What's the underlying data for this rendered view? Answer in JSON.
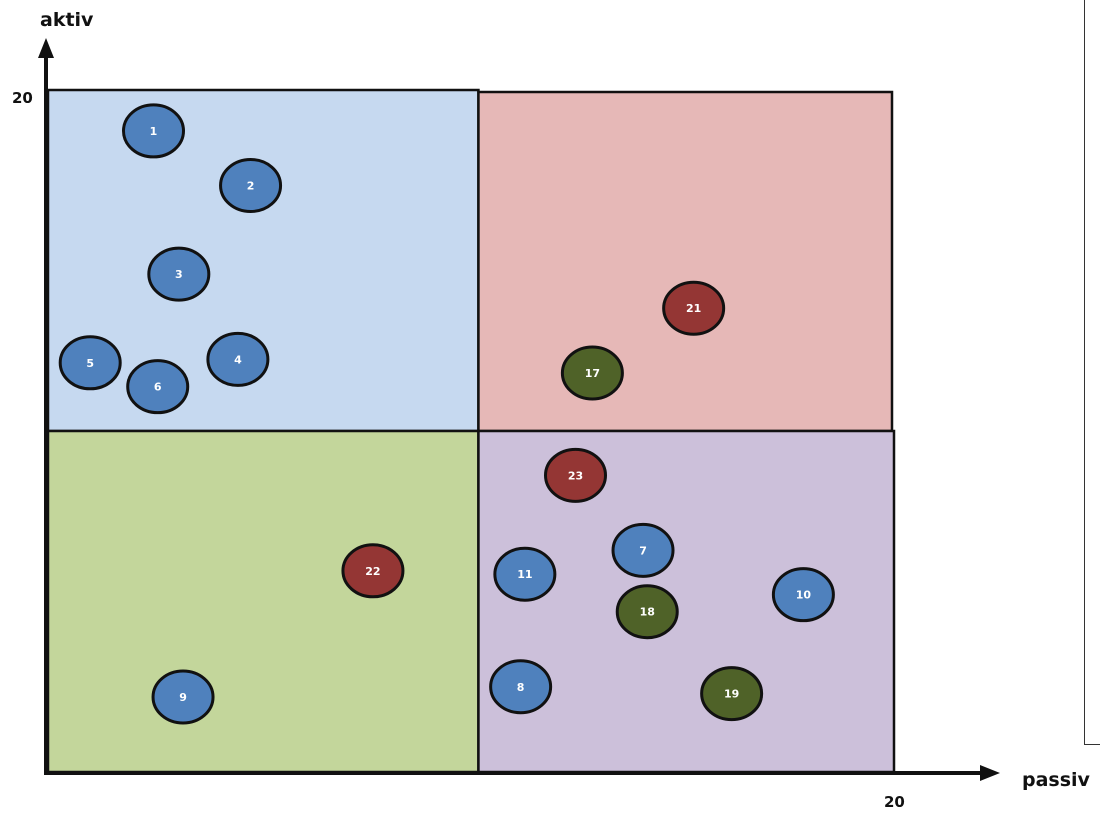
{
  "colors": {
    "quadrant_top_left": "#c6d9f0",
    "quadrant_top_right": "#e6b8b7",
    "quadrant_bottom_left": "#c3d69b",
    "quadrant_bottom_right": "#ccc0da",
    "node_blue": "#4f81bd",
    "node_red": "#943634",
    "node_green": "#4f6228",
    "outline": "#111111"
  },
  "chart_data": {
    "type": "scatter",
    "xlabel": "passiv",
    "ylabel": "aktiv",
    "x_tick_label": "20",
    "y_tick_label": "20",
    "xlim": [
      0,
      20
    ],
    "ylim": [
      0,
      20
    ],
    "quadrant_split": {
      "x": 10.2,
      "y": 10.0
    },
    "points": [
      {
        "label": "1",
        "x": 2.5,
        "y": 18.8,
        "color": "blue"
      },
      {
        "label": "2",
        "x": 4.8,
        "y": 17.2,
        "color": "blue"
      },
      {
        "label": "3",
        "x": 3.1,
        "y": 14.6,
        "color": "blue"
      },
      {
        "label": "4",
        "x": 4.5,
        "y": 12.1,
        "color": "blue"
      },
      {
        "label": "5",
        "x": 1.0,
        "y": 12.0,
        "color": "blue"
      },
      {
        "label": "6",
        "x": 2.6,
        "y": 11.3,
        "color": "blue"
      },
      {
        "label": "7",
        "x": 14.1,
        "y": 6.5,
        "color": "blue"
      },
      {
        "label": "8",
        "x": 11.2,
        "y": 2.5,
        "color": "blue"
      },
      {
        "label": "9",
        "x": 3.2,
        "y": 2.2,
        "color": "blue"
      },
      {
        "label": "10",
        "x": 17.9,
        "y": 5.2,
        "color": "blue"
      },
      {
        "label": "11",
        "x": 11.3,
        "y": 5.8,
        "color": "blue"
      },
      {
        "label": "17",
        "x": 12.9,
        "y": 11.7,
        "color": "green"
      },
      {
        "label": "18",
        "x": 14.2,
        "y": 4.7,
        "color": "green"
      },
      {
        "label": "19",
        "x": 16.2,
        "y": 2.3,
        "color": "green"
      },
      {
        "label": "21",
        "x": 15.3,
        "y": 13.6,
        "color": "red"
      },
      {
        "label": "22",
        "x": 7.7,
        "y": 5.9,
        "color": "red"
      },
      {
        "label": "23",
        "x": 12.5,
        "y": 8.7,
        "color": "red"
      }
    ]
  }
}
